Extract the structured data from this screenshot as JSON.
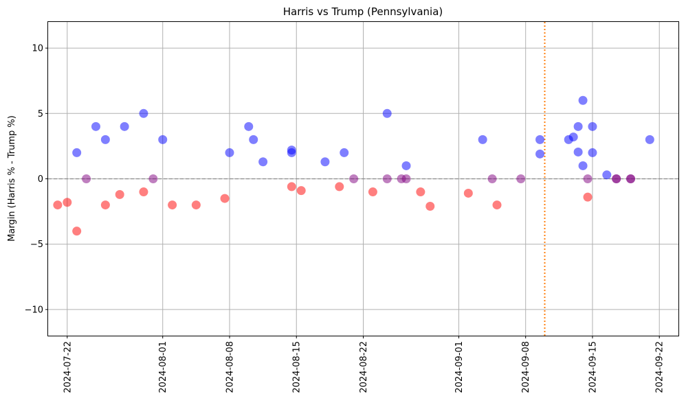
{
  "chart_data": {
    "type": "scatter",
    "title": "Harris vs Trump (Pennsylvania)",
    "xlabel": "",
    "ylabel": "Margin (Harris % - Trump %)",
    "ylim": [
      -12,
      12
    ],
    "xlim": [
      "2024-07-20",
      "2024-09-24"
    ],
    "y_ticks": [
      -10,
      -5,
      0,
      5,
      10
    ],
    "y_tick_labels": [
      "−10",
      "−5",
      "0",
      "5",
      "10"
    ],
    "x_ticks": [
      "2024-07-22",
      "2024-08-01",
      "2024-08-08",
      "2024-08-15",
      "2024-08-22",
      "2024-09-01",
      "2024-09-08",
      "2024-09-15",
      "2024-09-22"
    ],
    "x_tick_labels": [
      "2024-07-22",
      "2024-08-01",
      "2024-08-08",
      "2024-08-15",
      "2024-08-22",
      "2024-09-01",
      "2024-09-08",
      "2024-09-15",
      "2024-09-22"
    ],
    "grid": true,
    "reference_lines": [
      {
        "orientation": "horizontal",
        "value": 0,
        "style": "dashed",
        "color": "#888888"
      },
      {
        "orientation": "vertical",
        "value": "2024-09-10",
        "style": "dotted",
        "color": "#ff7f0e"
      }
    ],
    "colors": {
      "harris_lead": "#0000ff",
      "trump_lead": "#ff0000",
      "tie": "#800080"
    },
    "points": [
      {
        "x": "2024-07-21",
        "y": -2.0,
        "color": "#ff0000"
      },
      {
        "x": "2024-07-22",
        "y": -1.8,
        "color": "#ff0000"
      },
      {
        "x": "2024-07-23",
        "y": -4.0,
        "color": "#ff0000"
      },
      {
        "x": "2024-07-23",
        "y": 2.0,
        "color": "#0000ff"
      },
      {
        "x": "2024-07-24",
        "y": 0.0,
        "color": "#800080"
      },
      {
        "x": "2024-07-25",
        "y": 4.0,
        "color": "#0000ff"
      },
      {
        "x": "2024-07-26",
        "y": 3.0,
        "color": "#0000ff"
      },
      {
        "x": "2024-07-26",
        "y": -2.0,
        "color": "#ff0000"
      },
      {
        "x": "2024-07-27.5",
        "y": -1.2,
        "color": "#ff0000"
      },
      {
        "x": "2024-07-28",
        "y": 4.0,
        "color": "#0000ff"
      },
      {
        "x": "2024-07-30",
        "y": 5.0,
        "color": "#0000ff"
      },
      {
        "x": "2024-07-30",
        "y": -1.0,
        "color": "#ff0000"
      },
      {
        "x": "2024-07-31",
        "y": 0.0,
        "color": "#800080"
      },
      {
        "x": "2024-08-01",
        "y": 3.0,
        "color": "#0000ff"
      },
      {
        "x": "2024-08-02",
        "y": -2.0,
        "color": "#ff0000"
      },
      {
        "x": "2024-08-04.5",
        "y": -2.0,
        "color": "#ff0000"
      },
      {
        "x": "2024-08-07.5",
        "y": -1.5,
        "color": "#ff0000"
      },
      {
        "x": "2024-08-08",
        "y": 2.0,
        "color": "#0000ff"
      },
      {
        "x": "2024-08-10",
        "y": 4.0,
        "color": "#0000ff"
      },
      {
        "x": "2024-08-10.5",
        "y": 3.0,
        "color": "#0000ff"
      },
      {
        "x": "2024-08-11.5",
        "y": 1.3,
        "color": "#0000ff"
      },
      {
        "x": "2024-08-14.5",
        "y": -0.6,
        "color": "#ff0000"
      },
      {
        "x": "2024-08-14.5",
        "y": 2.2,
        "color": "#0000ff"
      },
      {
        "x": "2024-08-14.5",
        "y": 2.0,
        "color": "#0000ff"
      },
      {
        "x": "2024-08-15.5",
        "y": -0.9,
        "color": "#ff0000"
      },
      {
        "x": "2024-08-18",
        "y": 1.3,
        "color": "#0000ff"
      },
      {
        "x": "2024-08-19.5",
        "y": -0.6,
        "color": "#ff0000"
      },
      {
        "x": "2024-08-20",
        "y": 2.0,
        "color": "#0000ff"
      },
      {
        "x": "2024-08-21",
        "y": 0.0,
        "color": "#800080"
      },
      {
        "x": "2024-08-23",
        "y": -1.0,
        "color": "#ff0000"
      },
      {
        "x": "2024-08-24.5",
        "y": 5.0,
        "color": "#0000ff"
      },
      {
        "x": "2024-08-24.5",
        "y": 0.0,
        "color": "#800080"
      },
      {
        "x": "2024-08-26",
        "y": 0.0,
        "color": "#800080"
      },
      {
        "x": "2024-08-26.5",
        "y": 0.0,
        "color": "#800080"
      },
      {
        "x": "2024-08-26.5",
        "y": 1.0,
        "color": "#0000ff"
      },
      {
        "x": "2024-08-28",
        "y": -1.0,
        "color": "#ff0000"
      },
      {
        "x": "2024-08-29",
        "y": -2.1,
        "color": "#ff0000"
      },
      {
        "x": "2024-09-02",
        "y": -1.1,
        "color": "#ff0000"
      },
      {
        "x": "2024-09-03.5",
        "y": 3.0,
        "color": "#0000ff"
      },
      {
        "x": "2024-09-04.5",
        "y": 0.0,
        "color": "#800080"
      },
      {
        "x": "2024-09-05",
        "y": -2.0,
        "color": "#ff0000"
      },
      {
        "x": "2024-09-07.5",
        "y": 0.0,
        "color": "#800080"
      },
      {
        "x": "2024-09-09.5",
        "y": 3.0,
        "color": "#0000ff"
      },
      {
        "x": "2024-09-09.5",
        "y": 1.9,
        "color": "#0000ff"
      },
      {
        "x": "2024-09-12.5",
        "y": 3.0,
        "color": "#0000ff"
      },
      {
        "x": "2024-09-13",
        "y": 3.2,
        "color": "#0000ff"
      },
      {
        "x": "2024-09-13.5",
        "y": 4.0,
        "color": "#0000ff"
      },
      {
        "x": "2024-09-13.5",
        "y": 2.05,
        "color": "#0000ff"
      },
      {
        "x": "2024-09-14",
        "y": 6.0,
        "color": "#0000ff"
      },
      {
        "x": "2024-09-14",
        "y": 1.0,
        "color": "#0000ff"
      },
      {
        "x": "2024-09-14.5",
        "y": 0.0,
        "color": "#800080"
      },
      {
        "x": "2024-09-14.5",
        "y": -1.4,
        "color": "#ff0000"
      },
      {
        "x": "2024-09-15",
        "y": 4.0,
        "color": "#0000ff"
      },
      {
        "x": "2024-09-15",
        "y": 2.0,
        "color": "#0000ff"
      },
      {
        "x": "2024-09-16.5",
        "y": 0.3,
        "color": "#0000ff"
      },
      {
        "x": "2024-09-17.5",
        "y": 0.0,
        "color": "#800080"
      },
      {
        "x": "2024-09-17.5",
        "y": 0.0,
        "color": "#800080"
      },
      {
        "x": "2024-09-19",
        "y": 0.0,
        "color": "#800080"
      },
      {
        "x": "2024-09-19",
        "y": 0.0,
        "color": "#800080"
      },
      {
        "x": "2024-09-21",
        "y": 3.0,
        "color": "#0000ff"
      }
    ]
  }
}
